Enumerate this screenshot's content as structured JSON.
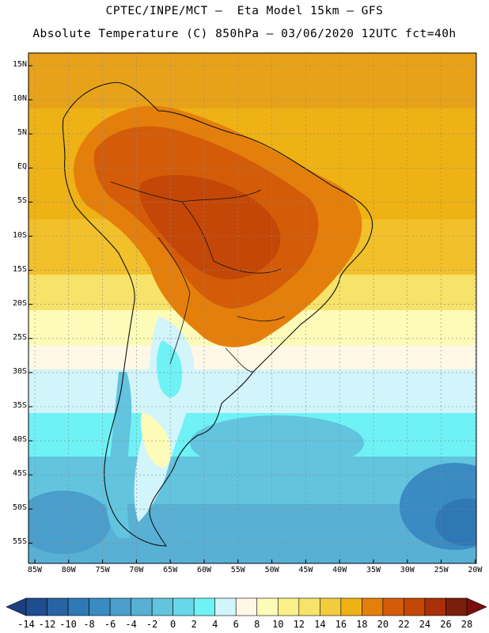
{
  "title": {
    "line1": "CPTEC/INPE/MCT –  Eta Model 15km – GFS",
    "line2": "Absolute Temperature (C) 850hPa – 03/06/2020 12UTC fct=40h"
  },
  "lat_labels": [
    "15N",
    "10N",
    "5N",
    "EQ",
    "5S",
    "10S",
    "15S",
    "20S",
    "25S",
    "30S",
    "35S",
    "40S",
    "45S",
    "50S",
    "55S"
  ],
  "lon_labels": [
    "85W",
    "80W",
    "75W",
    "70W",
    "65W",
    "60W",
    "55W",
    "50W",
    "45W",
    "40W",
    "35W",
    "30W",
    "25W",
    "20W"
  ],
  "colorbar": {
    "labels": [
      "-14",
      "-12",
      "-10",
      "-8",
      "-6",
      "-4",
      "-2",
      "0",
      "2",
      "4",
      "6",
      "8",
      "10",
      "12",
      "14",
      "16",
      "18",
      "20",
      "22",
      "24",
      "26",
      "28"
    ],
    "colors": [
      "#1f4d8f",
      "#2863a3",
      "#2f78b6",
      "#3a8bc2",
      "#4a9ecb",
      "#58b1d4",
      "#62c4de",
      "#67d8e9",
      "#6ef2f6",
      "#d2f4fb",
      "#fff8e6",
      "#fdfbb8",
      "#faf08a",
      "#f7e26a",
      "#f2cc3f",
      "#eeb215",
      "#e57f0b",
      "#d45c09",
      "#c44707",
      "#a8300a",
      "#7a1f0c"
    ],
    "under_color": "#1b3f80",
    "over_color": "#7a0e0e"
  }
}
